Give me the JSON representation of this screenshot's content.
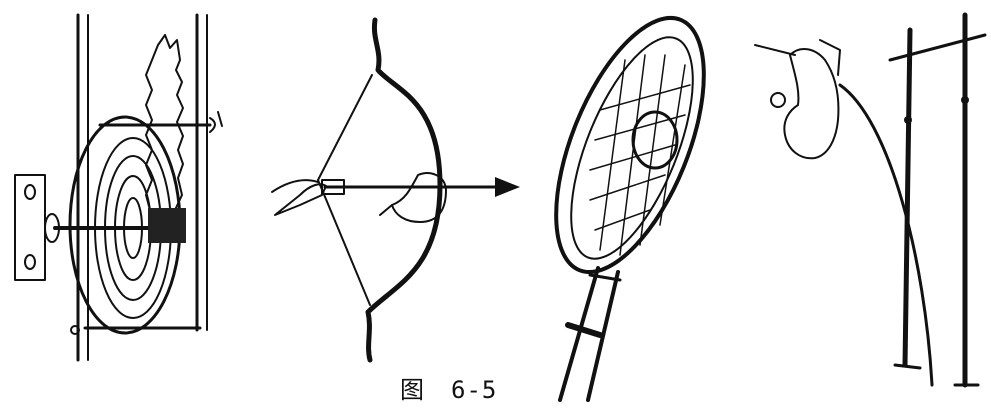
{
  "caption": {
    "prefix": "图",
    "number": "6-5"
  }
}
